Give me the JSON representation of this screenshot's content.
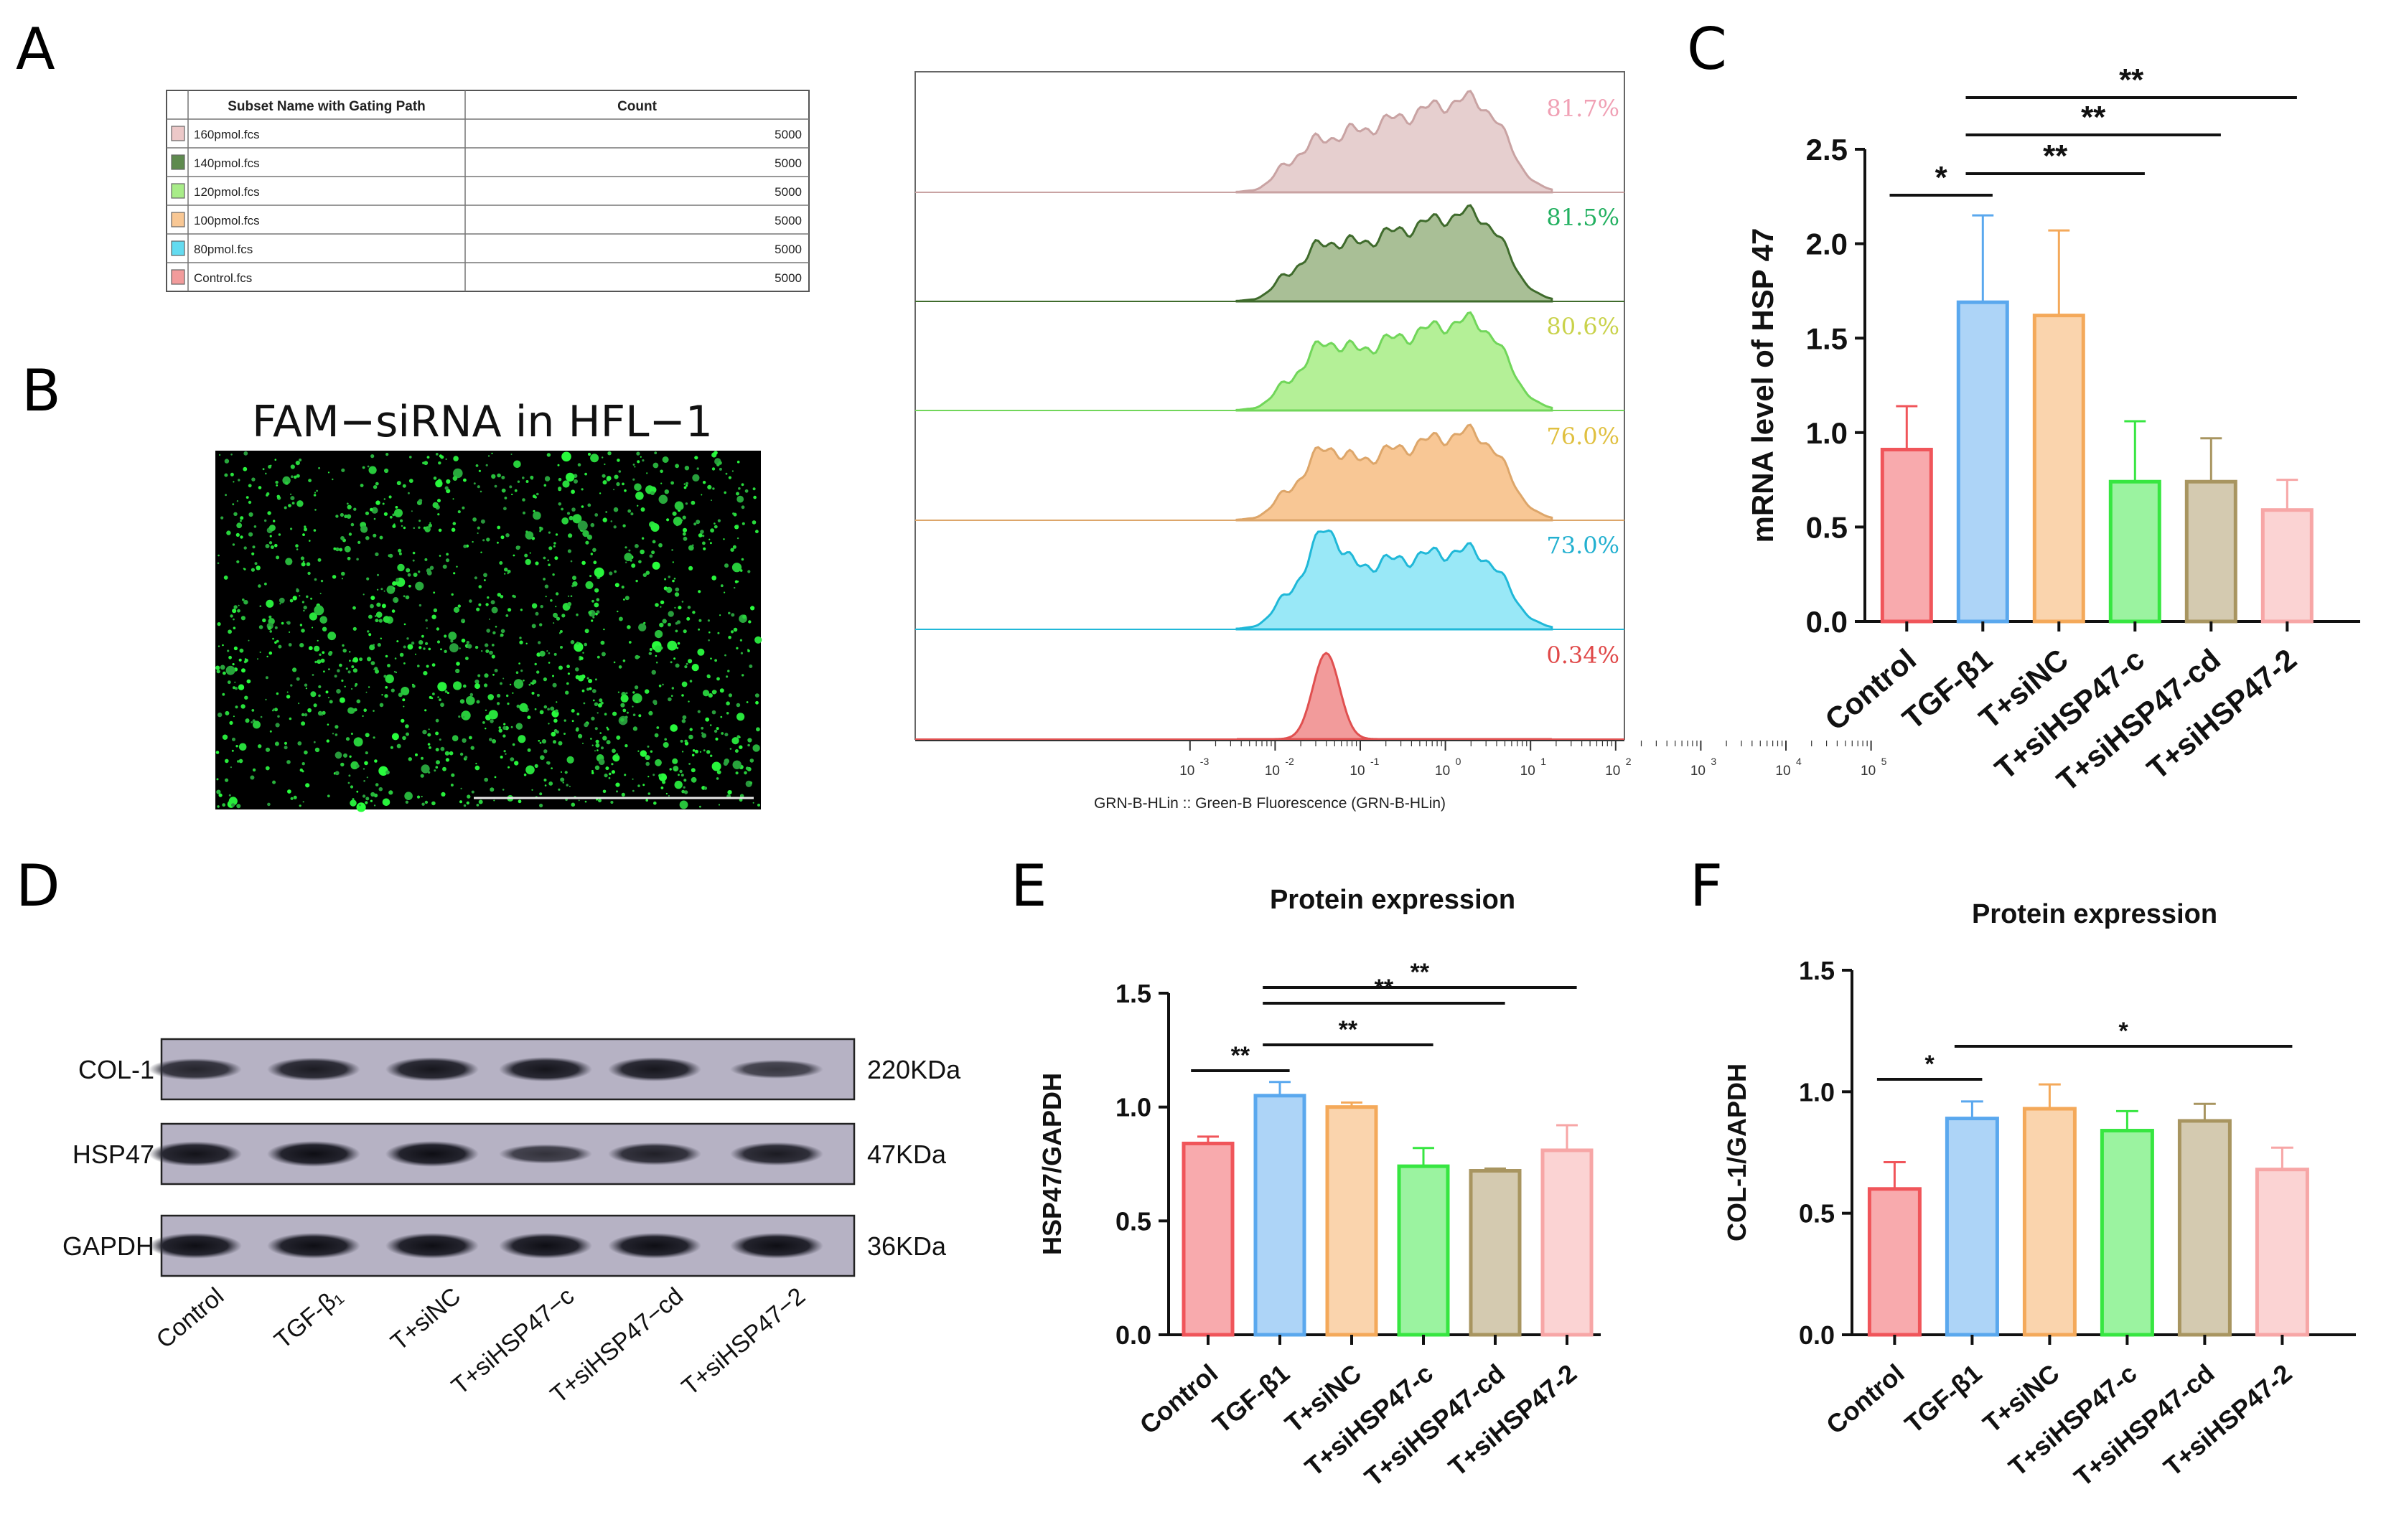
{
  "panels": {
    "A": "A",
    "B": "B",
    "C": "C",
    "D": "D",
    "E": "E",
    "F": "F"
  },
  "colors": {
    "control": "#f0555a",
    "tgf": "#5aa8ee",
    "sinc": "#f4a95a",
    "sic": "#37e641",
    "sicd": "#a89560",
    "si2": "#f7a6a6"
  },
  "gating_table": {
    "headers": [
      "Subset Name with Gating Path",
      "Count"
    ],
    "rows": [
      {
        "name": "160pmol.fcs",
        "count": "5000",
        "color": "#ecc8c8"
      },
      {
        "name": "140pmol.fcs",
        "count": "5000",
        "color": "#5e8a4e"
      },
      {
        "name": "120pmol.fcs",
        "count": "5000",
        "color": "#a8ec88"
      },
      {
        "name": "100pmol.fcs",
        "count": "5000",
        "color": "#f8c794"
      },
      {
        "name": "80pmol.fcs",
        "count": "5000",
        "color": "#63dbf0"
      },
      {
        "name": "Control.fcs",
        "count": "5000",
        "color": "#f29b9b"
      }
    ]
  },
  "histogram": {
    "xlabel": "GRN-B-HLin :: Green-B Fluorescence (GRN-B-HLin)",
    "tick_exponents": [
      "-3",
      "-2",
      "-1",
      "0",
      "1",
      "2",
      "3",
      "4",
      "5"
    ],
    "tracks": [
      {
        "name": "160pmol",
        "pct": "81.7%",
        "fill": "#e6cfcf",
        "stroke": "#c9a3a3",
        "label_color": "#f0a0b4"
      },
      {
        "name": "140pmol",
        "pct": "81.5%",
        "fill": "#a9bf96",
        "stroke": "#3f6b2c",
        "label_color": "#22b060"
      },
      {
        "name": "120pmol",
        "pct": "80.6%",
        "fill": "#b4f097",
        "stroke": "#71d65a",
        "label_color": "#c9d24a"
      },
      {
        "name": "100pmol",
        "pct": "76.0%",
        "fill": "#f8c795",
        "stroke": "#dda66a",
        "label_color": "#e0c040"
      },
      {
        "name": "80pmol",
        "pct": "73.0%",
        "fill": "#99e8f7",
        "stroke": "#20b8d8",
        "label_color": "#22b0d0"
      },
      {
        "name": "Control",
        "pct": "0.34%",
        "fill": "#f29b9b",
        "stroke": "#e05050",
        "label_color": "#e04848"
      }
    ]
  },
  "micrograph": {
    "title": "FAM−siRNA in HFL−1"
  },
  "western": {
    "bands": [
      {
        "label": "COL-1",
        "size": "220KDa",
        "intensity": [
          0.75,
          0.85,
          0.9,
          0.92,
          0.9,
          0.55
        ]
      },
      {
        "label": "HSP47",
        "size": "47KDa",
        "intensity": [
          0.95,
          1.0,
          1.0,
          0.6,
          0.8,
          0.85
        ]
      },
      {
        "label": "GAPDH",
        "size": "36KDa",
        "intensity": [
          1.0,
          1.0,
          1.0,
          1.0,
          1.0,
          1.0
        ]
      }
    ],
    "lanes": [
      "Control",
      "TGF-β₁",
      "T+siNC",
      "T+siHSP47−c",
      "T+siHSP47−cd",
      "T+siHSP47−2"
    ]
  },
  "chart_data": [
    {
      "id": "C",
      "type": "bar",
      "title": "",
      "ylabel": "mRNA level of HSP 47",
      "categories": [
        "Control",
        "TGF-β1",
        "T+siNC",
        "T+siHSP47-c",
        "T+siHSP47-cd",
        "T+siHSP47-2"
      ],
      "values": [
        0.91,
        1.69,
        1.62,
        0.74,
        0.74,
        0.59
      ],
      "errors": [
        0.23,
        0.46,
        0.45,
        0.32,
        0.23,
        0.16
      ],
      "ylim": [
        0,
        2.5
      ],
      "yticks": [
        "0.0",
        "0.5",
        "1.0",
        "1.5",
        "2.0",
        "2.5"
      ],
      "significance": [
        {
          "from": 0,
          "to": 1,
          "label": "*"
        },
        {
          "from": 1,
          "to": 3,
          "label": "**"
        },
        {
          "from": 1,
          "to": 4,
          "label": "**"
        },
        {
          "from": 1,
          "to": 5,
          "label": "**"
        }
      ]
    },
    {
      "id": "E",
      "type": "bar",
      "title": "Protein expression",
      "ylabel": "HSP47/GAPDH",
      "categories": [
        "Control",
        "TGF-β1",
        "T+siNC",
        "T+siHSP47-c",
        "T+siHSP47-cd",
        "T+siHSP47-2"
      ],
      "values": [
        0.84,
        1.05,
        1.0,
        0.74,
        0.72,
        0.81
      ],
      "errors": [
        0.03,
        0.06,
        0.02,
        0.08,
        0.01,
        0.11
      ],
      "ylim": [
        0,
        1.5
      ],
      "yticks": [
        "0.0",
        "0.5",
        "1.0",
        "1.5"
      ],
      "significance": [
        {
          "from": 0,
          "to": 1,
          "label": "**"
        },
        {
          "from": 1,
          "to": 3,
          "label": "**"
        },
        {
          "from": 1,
          "to": 4,
          "label": "**"
        },
        {
          "from": 1,
          "to": 5,
          "label": "**"
        }
      ]
    },
    {
      "id": "F",
      "type": "bar",
      "title": "Protein expression",
      "ylabel": "COL-1/GAPDH",
      "categories": [
        "Control",
        "TGF-β1",
        "T+siNC",
        "T+siHSP47-c",
        "T+siHSP47-cd",
        "T+siHSP47-2"
      ],
      "values": [
        0.6,
        0.89,
        0.93,
        0.84,
        0.88,
        0.68
      ],
      "errors": [
        0.11,
        0.07,
        0.1,
        0.08,
        0.07,
        0.09
      ],
      "ylim": [
        0,
        1.5
      ],
      "yticks": [
        "0.0",
        "0.5",
        "1.0",
        "1.5"
      ],
      "significance": [
        {
          "from": 0,
          "to": 1,
          "label": "*"
        },
        {
          "from": 1,
          "to": 5,
          "label": "*"
        }
      ]
    }
  ]
}
